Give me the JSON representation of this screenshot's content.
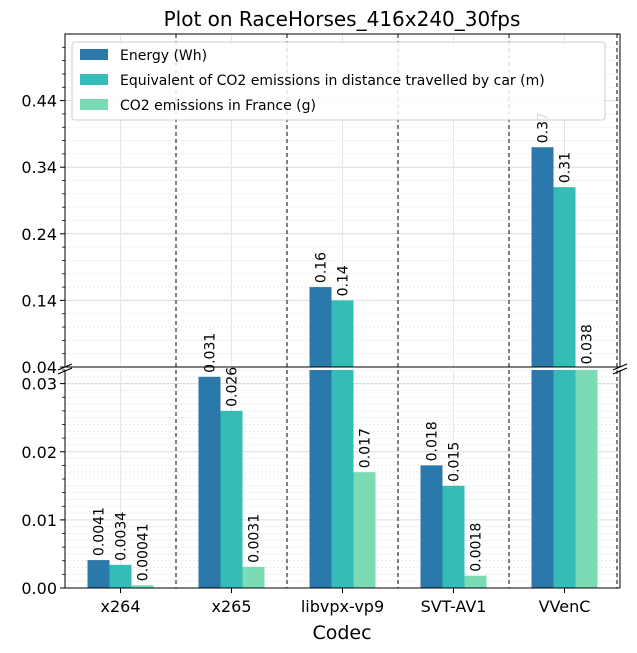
{
  "chart_data": {
    "type": "bar",
    "title": "Plot on RaceHorses_416x240_30fps",
    "xlabel": "Codec",
    "ylabel": "",
    "categories": [
      "x264",
      "x265",
      "libvpx-vp9",
      "SVT-AV1",
      "VVenC"
    ],
    "series": [
      {
        "name": "Energy (Wh)",
        "color": "#2b79aa",
        "values": [
          0.0041,
          0.031,
          0.16,
          0.018,
          0.37
        ],
        "labels": [
          "0.0041",
          "0.031",
          "0.16",
          "0.018",
          "0.37"
        ]
      },
      {
        "name": "Equivalent of CO2 emissions in distance travelled by car (m)",
        "color": "#33bdb6",
        "values": [
          0.0034,
          0.026,
          0.14,
          0.015,
          0.31
        ],
        "labels": [
          "0.0034",
          "0.026",
          "0.14",
          "0.015",
          "0.31"
        ]
      },
      {
        "name": "CO2 emissions in France (g)",
        "color": "#7adbb4",
        "values": [
          0.00041,
          0.0031,
          0.017,
          0.0018,
          0.038
        ],
        "labels": [
          "0.00041",
          "0.0031",
          "0.017",
          "0.0018",
          "0.038"
        ]
      }
    ],
    "broken_y_axis": {
      "lower_ylim": [
        0,
        0.032
      ],
      "lower_ticks": [
        "0.00",
        "0.01",
        "0.02",
        "0.03"
      ],
      "upper_ylim": [
        0.04,
        0.54
      ],
      "upper_ticks": [
        "0.04",
        "0.14",
        "0.24",
        "0.34",
        "0.44"
      ]
    },
    "grid": true,
    "legend_position": "upper-left"
  }
}
